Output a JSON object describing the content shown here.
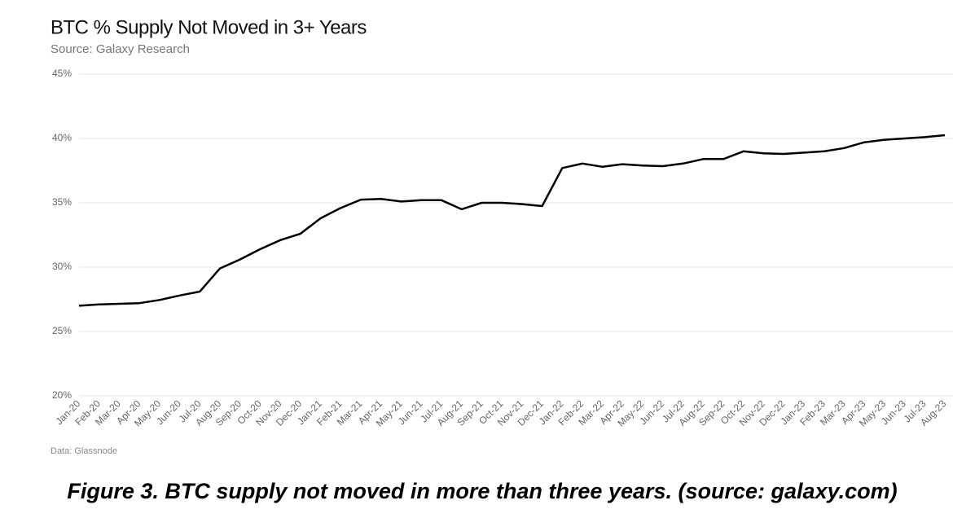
{
  "chart_data": {
    "type": "line",
    "title": "BTC  % Supply Not Moved in 3+ Years",
    "subtitle": "Source: Galaxy Research",
    "source_note": "Data: Glassnode",
    "caption": "Figure 3. BTC supply not moved in more than three years. (source: galaxy.com)",
    "categories": [
      "Jan-20",
      "Feb-20",
      "Mar-20",
      "Apr-20",
      "May-20",
      "Jun-20",
      "Jul-20",
      "Aug-20",
      "Sep-20",
      "Oct-20",
      "Nov-20",
      "Dec-20",
      "Jan-21",
      "Feb-21",
      "Mar-21",
      "Apr-21",
      "May-21",
      "Jun-21",
      "Jul-21",
      "Aug-21",
      "Sep-21",
      "Oct-21",
      "Nov-21",
      "Dec-21",
      "Jan-22",
      "Feb-22",
      "Mar-22",
      "Apr-22",
      "May-22",
      "Jun-22",
      "Jul-22",
      "Aug-22",
      "Sep-22",
      "Oct-22",
      "Nov-22",
      "Dec-22",
      "Jan-23",
      "Feb-23",
      "Mar-23",
      "Apr-23",
      "May-23",
      "Jun-23",
      "Jul-23",
      "Aug-23"
    ],
    "series": [
      {
        "color": "#000000",
        "values": [
          27.0,
          27.1,
          27.15,
          27.2,
          27.45,
          27.8,
          28.1,
          29.9,
          30.6,
          31.4,
          32.1,
          32.6,
          33.8,
          34.6,
          35.25,
          35.3,
          35.1,
          35.2,
          35.2,
          34.5,
          35.0,
          35.0,
          34.9,
          34.75,
          37.7,
          38.05,
          37.8,
          38.0,
          37.9,
          37.85,
          38.05,
          38.4,
          38.4,
          39.0,
          38.85,
          38.8,
          38.9,
          39.0,
          39.25,
          39.7,
          39.9,
          40.0,
          40.1,
          40.25
        ]
      }
    ],
    "ylim": [
      20,
      45
    ],
    "yticks": [
      {
        "value": 20,
        "label": "20%"
      },
      {
        "value": 25,
        "label": "25%"
      },
      {
        "value": 30,
        "label": "30%"
      },
      {
        "value": 35,
        "label": "35%"
      },
      {
        "value": 40,
        "label": "40%"
      },
      {
        "value": 45,
        "label": "45%"
      }
    ],
    "grid": true
  }
}
